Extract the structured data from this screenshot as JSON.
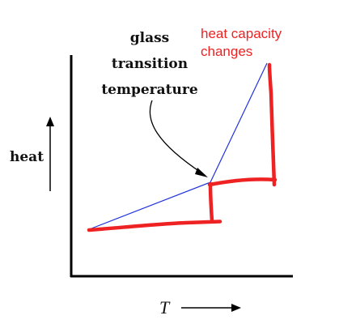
{
  "annotation": {
    "glass_line1": "glass",
    "glass_line2": "transition",
    "glass_line3": "temperature",
    "heat_capacity_line1": "heat capacity",
    "heat_capacity_line2": "changes"
  },
  "axes": {
    "y_label": "heat",
    "x_label": "T"
  },
  "colors": {
    "axis": "#000000",
    "heat_curve": "#2233dd",
    "highlight": "#ee2222",
    "annotation_red": "#ee2222",
    "text": "#111111"
  }
}
